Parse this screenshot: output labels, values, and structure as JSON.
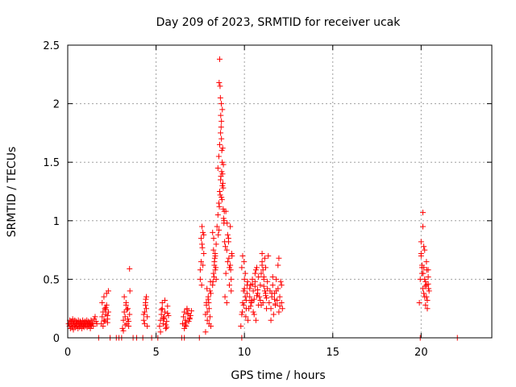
{
  "chart_data": {
    "type": "scatter",
    "title": "Day 209 of 2023, SRMTID for receiver ucak",
    "xlabel": "GPS time / hours",
    "ylabel": "SRMTID / TECUs",
    "xlim": [
      0,
      24
    ],
    "ylim": [
      0,
      2.5
    ],
    "xticks": [
      0,
      5,
      10,
      15,
      20
    ],
    "yticks": [
      0,
      0.5,
      1,
      1.5,
      2,
      2.5
    ],
    "xtick_labels": [
      "0",
      "5",
      "10",
      "15",
      "20"
    ],
    "ytick_labels": [
      "0",
      "0.5",
      "1",
      "1.5",
      "2",
      "2.5"
    ],
    "grid": true,
    "marker": "+",
    "colors": {
      "marker": "#ff0000",
      "grid": "#a0a0a0",
      "axes": "#000000"
    },
    "series": [
      {
        "name": "SRMTID",
        "x": [
          0.05,
          0.1,
          0.12,
          0.15,
          0.18,
          0.2,
          0.22,
          0.25,
          0.28,
          0.3,
          0.32,
          0.35,
          0.38,
          0.4,
          0.42,
          0.45,
          0.48,
          0.5,
          0.52,
          0.55,
          0.58,
          0.6,
          0.62,
          0.65,
          0.68,
          0.7,
          0.72,
          0.75,
          0.78,
          0.8,
          0.82,
          0.85,
          0.88,
          0.9,
          0.92,
          0.95,
          0.98,
          1.0,
          1.02,
          1.05,
          1.08,
          1.1,
          1.12,
          1.15,
          1.18,
          1.2,
          1.22,
          1.25,
          1.28,
          1.3,
          1.32,
          1.35,
          1.38,
          1.4,
          1.45,
          1.5,
          1.55,
          1.6,
          1.65,
          1.9,
          1.95,
          2.0,
          2.05,
          2.1,
          2.15,
          2.2,
          2.25,
          2.3,
          1.95,
          2.05,
          2.15,
          2.25,
          2.0,
          2.1,
          2.2,
          2.3,
          2.15,
          2.25,
          3.1,
          3.15,
          3.2,
          3.25,
          3.3,
          3.35,
          3.4,
          3.45,
          3.5,
          3.2,
          3.3,
          3.4,
          3.15,
          3.25,
          3.35,
          3.45,
          3.5,
          3.52,
          4.3,
          4.35,
          4.4,
          4.45,
          4.5,
          4.35,
          4.45,
          4.3,
          4.4,
          4.5,
          4.42,
          5.2,
          5.25,
          5.3,
          5.35,
          5.4,
          5.45,
          5.5,
          5.55,
          5.6,
          5.65,
          5.7,
          5.25,
          5.35,
          5.45,
          5.55,
          5.65,
          5.3,
          5.5,
          5.6,
          5.42,
          6.5,
          6.55,
          6.6,
          6.65,
          6.7,
          6.75,
          6.8,
          6.85,
          6.9,
          6.95,
          7.0,
          6.6,
          6.7,
          6.8,
          6.9,
          6.65,
          6.75,
          7.5,
          7.55,
          7.6,
          7.65,
          7.7,
          7.5,
          7.55,
          7.6,
          7.65,
          7.7,
          7.58,
          7.62,
          7.8,
          7.85,
          7.9,
          7.95,
          8.0,
          8.05,
          8.1,
          7.85,
          7.95,
          8.05,
          7.8,
          7.9,
          8.0,
          8.1,
          7.88,
          7.98,
          8.08,
          8.2,
          8.25,
          8.3,
          8.35,
          8.4,
          8.2,
          8.25,
          8.3,
          8.35,
          8.4,
          8.22,
          8.28,
          8.32,
          8.38,
          8.26,
          8.34,
          8.45,
          8.5,
          8.55,
          8.6,
          8.65,
          8.7,
          8.75,
          8.8,
          8.85,
          8.5,
          8.55,
          8.6,
          8.65,
          8.7,
          8.75,
          8.8,
          8.6,
          8.62,
          8.64,
          8.66,
          8.68,
          8.7,
          8.72,
          8.74,
          8.76,
          8.78,
          8.58,
          8.63,
          8.67,
          8.71,
          8.73,
          8.52,
          8.56,
          8.82,
          8.84,
          8.86,
          8.88,
          8.57,
          8.69,
          8.77,
          8.81,
          8.9,
          8.95,
          9.0,
          9.05,
          9.1,
          9.15,
          9.2,
          9.25,
          9.3,
          8.95,
          9.05,
          9.15,
          9.25,
          8.92,
          9.02,
          9.12,
          9.22,
          9.0,
          9.1,
          9.2,
          9.28,
          9.8,
          9.85,
          9.9,
          9.95,
          10.0,
          10.05,
          10.1,
          10.15,
          10.2,
          9.85,
          9.95,
          10.05,
          10.15,
          9.9,
          10.0,
          10.1,
          9.88,
          9.98,
          10.08,
          10.18,
          10.25,
          10.3,
          10.35,
          10.4,
          10.45,
          10.5,
          10.55,
          10.6,
          10.65,
          10.7,
          10.75,
          10.8,
          10.3,
          10.4,
          10.5,
          10.6,
          10.7,
          10.8,
          10.35,
          10.45,
          10.55,
          10.65,
          10.75,
          10.4,
          10.6,
          10.85,
          10.9,
          10.95,
          11.0,
          11.05,
          11.1,
          11.15,
          11.2,
          11.25,
          11.3,
          11.35,
          10.9,
          11.0,
          11.1,
          11.2,
          11.3,
          10.95,
          11.05,
          11.15,
          11.25,
          11.0,
          11.1,
          11.2,
          11.4,
          11.45,
          11.5,
          11.55,
          11.6,
          11.65,
          11.7,
          11.75,
          11.8,
          11.85,
          11.9,
          11.95,
          12.0,
          12.05,
          12.1,
          12.15,
          11.5,
          11.6,
          11.7,
          11.8,
          11.9,
          12.0,
          12.1,
          11.55,
          11.75,
          11.95,
          19.9,
          19.95,
          20.0,
          20.05,
          20.1,
          20.15,
          20.2,
          20.25,
          20.3,
          20.35,
          20.4,
          20.45,
          20.0,
          20.1,
          20.2,
          20.3,
          20.4,
          20.05,
          20.15,
          20.25,
          20.35,
          20.05,
          20.1,
          20.15,
          20.2,
          20.3,
          20.4,
          20.0,
          20.12,
          20.22,
          20.32,
          20.42,
          1.75,
          2.4,
          2.75,
          2.9,
          3.05,
          3.7,
          3.9,
          4.25,
          4.75,
          5.1,
          6.45,
          6.6,
          7.45,
          9.85,
          19.95,
          22.05
        ],
        "y": [
          0.12,
          0.1,
          0.15,
          0.08,
          0.13,
          0.11,
          0.14,
          0.09,
          0.16,
          0.12,
          0.07,
          0.13,
          0.1,
          0.15,
          0.11,
          0.09,
          0.14,
          0.12,
          0.1,
          0.13,
          0.08,
          0.15,
          0.11,
          0.12,
          0.09,
          0.14,
          0.1,
          0.13,
          0.12,
          0.08,
          0.11,
          0.15,
          0.1,
          0.13,
          0.09,
          0.12,
          0.14,
          0.11,
          0.1,
          0.13,
          0.15,
          0.09,
          0.12,
          0.11,
          0.14,
          0.1,
          0.13,
          0.12,
          0.08,
          0.11,
          0.15,
          0.1,
          0.13,
          0.12,
          0.1,
          0.16,
          0.18,
          0.14,
          0.12,
          0.12,
          0.18,
          0.22,
          0.15,
          0.25,
          0.2,
          0.28,
          0.16,
          0.22,
          0.3,
          0.35,
          0.24,
          0.19,
          0.1,
          0.14,
          0.38,
          0.4,
          0.26,
          0.13,
          0.08,
          0.15,
          0.22,
          0.18,
          0.3,
          0.12,
          0.25,
          0.1,
          0.2,
          0.35,
          0.28,
          0.16,
          0.06,
          0.11,
          0.24,
          0.14,
          0.59,
          0.4,
          0.15,
          0.22,
          0.3,
          0.35,
          0.18,
          0.12,
          0.25,
          0.2,
          0.28,
          0.1,
          0.33,
          0.1,
          0.15,
          0.2,
          0.25,
          0.12,
          0.18,
          0.22,
          0.08,
          0.14,
          0.27,
          0.19,
          0.05,
          0.3,
          0.16,
          0.11,
          0.21,
          0.24,
          0.32,
          0.09,
          0.17,
          0.12,
          0.18,
          0.22,
          0.15,
          0.1,
          0.25,
          0.2,
          0.14,
          0.17,
          0.19,
          0.23,
          0.08,
          0.13,
          0.21,
          0.16,
          0.11,
          0.24,
          0.5,
          0.65,
          0.8,
          0.9,
          0.72,
          0.58,
          0.85,
          0.95,
          0.62,
          0.88,
          0.45,
          0.77,
          0.2,
          0.3,
          0.15,
          0.35,
          0.25,
          0.4,
          0.1,
          0.28,
          0.33,
          0.18,
          0.05,
          0.22,
          0.12,
          0.38,
          0.42,
          0.3,
          0.48,
          0.45,
          0.55,
          0.62,
          0.7,
          0.5,
          0.9,
          0.75,
          0.65,
          0.58,
          0.8,
          0.48,
          0.52,
          0.68,
          0.6,
          0.85,
          0.72,
          0.95,
          1.05,
          1.15,
          1.25,
          1.35,
          1.2,
          1.3,
          1.1,
          1.0,
          1.45,
          1.55,
          1.65,
          1.75,
          1.85,
          1.95,
          1.28,
          2.38,
          2.15,
          2.05,
          1.9,
          1.8,
          1.7,
          1.6,
          1.5,
          1.4,
          1.32,
          1.12,
          1.22,
          1.38,
          1.42,
          1.18,
          0.88,
          0.92,
          1.02,
          0.98,
          1.08,
          0.82,
          2.18,
          2.0,
          1.62,
          1.48,
          0.35,
          0.55,
          0.75,
          0.65,
          0.85,
          0.45,
          0.95,
          0.5,
          0.7,
          1.08,
          0.88,
          0.6,
          0.4,
          0.78,
          0.98,
          0.68,
          0.58,
          0.3,
          0.82,
          0.62,
          0.72,
          0.1,
          0.2,
          0.3,
          0.4,
          0.5,
          0.35,
          0.25,
          0.45,
          0.15,
          0.6,
          0.28,
          0.55,
          0.38,
          0.7,
          0.42,
          0.32,
          0.22,
          0.65,
          0.18,
          0.48,
          0.25,
          0.35,
          0.45,
          0.3,
          0.5,
          0.4,
          0.2,
          0.55,
          0.15,
          0.6,
          0.38,
          0.28,
          0.42,
          0.32,
          0.22,
          0.48,
          0.36,
          0.52,
          0.27,
          0.46,
          0.33,
          0.58,
          0.41,
          0.31,
          0.44,
          0.35,
          0.45,
          0.55,
          0.65,
          0.3,
          0.5,
          0.4,
          0.6,
          0.25,
          0.42,
          0.7,
          0.32,
          0.62,
          0.52,
          0.38,
          0.48,
          0.28,
          0.58,
          0.68,
          0.34,
          0.72,
          0.44,
          0.36,
          0.3,
          0.4,
          0.25,
          0.35,
          0.45,
          0.2,
          0.38,
          0.28,
          0.5,
          0.32,
          0.42,
          0.22,
          0.35,
          0.48,
          0.3,
          0.25,
          0.15,
          0.52,
          0.33,
          0.4,
          0.62,
          0.27,
          0.45,
          0.38,
          0.29,
          0.68,
          0.3,
          0.5,
          0.7,
          0.55,
          0.42,
          0.6,
          0.35,
          0.48,
          0.65,
          0.25,
          0.58,
          0.4,
          0.82,
          1.07,
          0.75,
          0.45,
          0.52,
          0.62,
          0.38,
          0.28,
          0.32,
          0.6,
          0.95,
          0.78,
          0.5,
          0.35,
          0.46,
          0.72,
          0.55,
          0.44,
          0.58,
          0.42,
          0,
          0,
          0,
          0,
          0,
          0,
          0,
          0,
          0,
          0,
          0,
          0,
          0,
          0,
          0,
          0
        ]
      }
    ]
  }
}
